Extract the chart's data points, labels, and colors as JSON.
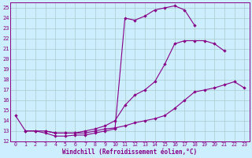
{
  "xlabel": "Windchill (Refroidissement éolien,°C)",
  "bg_color": "#cceeff",
  "line_color": "#880088",
  "grid_color": "#aacccc",
  "xlim": [
    -0.5,
    23.5
  ],
  "ylim": [
    12,
    25.5
  ],
  "xticks": [
    0,
    1,
    2,
    3,
    4,
    5,
    6,
    7,
    8,
    9,
    10,
    11,
    12,
    13,
    14,
    15,
    16,
    17,
    18,
    19,
    20,
    21,
    22,
    23
  ],
  "yticks": [
    12,
    13,
    14,
    15,
    16,
    17,
    18,
    19,
    20,
    21,
    22,
    23,
    24,
    25
  ],
  "line1_x": [
    0,
    1,
    2,
    3,
    4,
    5,
    6,
    7,
    8,
    9,
    10,
    11,
    12,
    13,
    14,
    15,
    16,
    17,
    18
  ],
  "line1_y": [
    14.5,
    13.0,
    13.0,
    12.8,
    12.5,
    12.5,
    12.6,
    12.6,
    12.8,
    13.0,
    13.2,
    24.0,
    23.8,
    24.2,
    24.8,
    25.0,
    25.2,
    24.8,
    23.3
  ],
  "line2_x": [
    1,
    2,
    3,
    4,
    5,
    6,
    7,
    8,
    9,
    10,
    11,
    12,
    13,
    14,
    15,
    16,
    17,
    18,
    19,
    20,
    21
  ],
  "line2_y": [
    13.0,
    13.0,
    13.0,
    12.8,
    12.8,
    12.8,
    13.0,
    13.2,
    13.5,
    14.0,
    15.5,
    16.5,
    17.0,
    17.8,
    19.5,
    21.5,
    21.8,
    21.8,
    21.8,
    21.5,
    20.8
  ],
  "line3_x": [
    3,
    4,
    5,
    6,
    7,
    8,
    9,
    10,
    11,
    12,
    13,
    14,
    15,
    16,
    17,
    18,
    19,
    20,
    21,
    22,
    23
  ],
  "line3_y": [
    13.0,
    12.8,
    12.8,
    12.8,
    12.8,
    13.0,
    13.2,
    13.3,
    13.5,
    13.8,
    14.0,
    14.2,
    14.5,
    15.2,
    16.0,
    16.8,
    17.0,
    17.2,
    17.5,
    17.8,
    17.2
  ]
}
